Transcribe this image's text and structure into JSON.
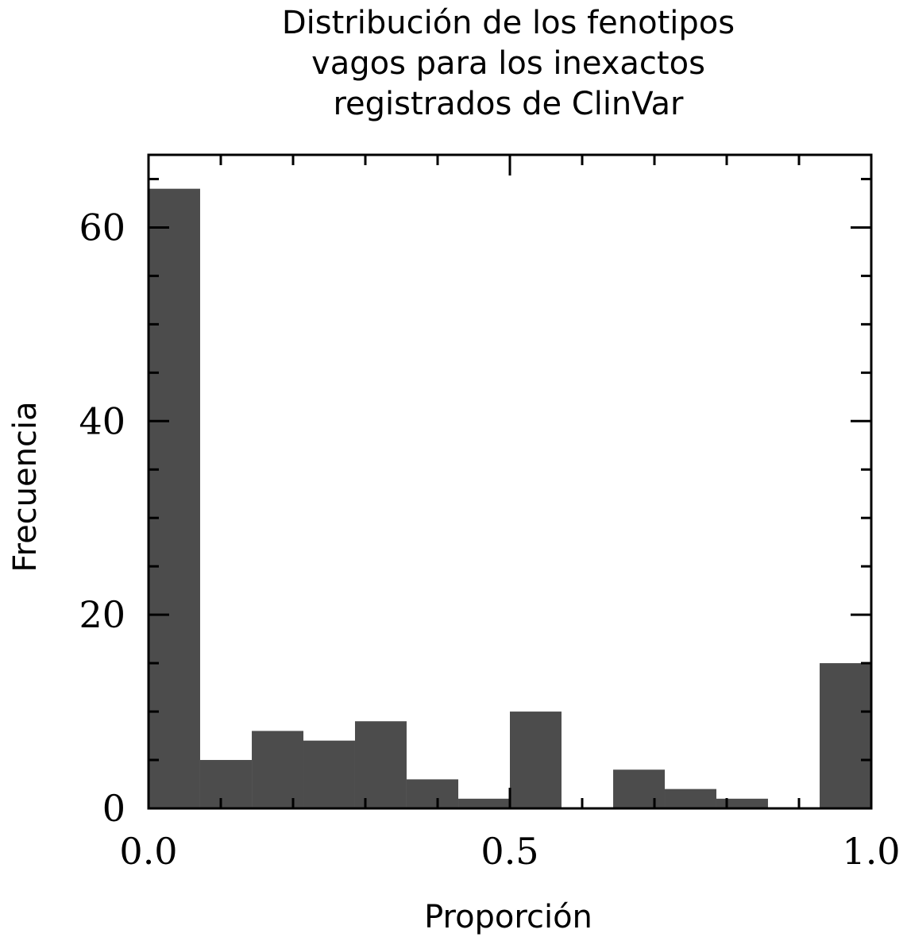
{
  "chart_data": {
    "type": "bar",
    "title_lines": [
      "Distribución de los fenotipos",
      "vagos para los inexactos",
      "registrados de ClinVar"
    ],
    "xlabel": "Proporción",
    "ylabel": "Frecuencia",
    "xlim": [
      0.0,
      1.0
    ],
    "ylim": [
      0,
      67.5
    ],
    "xticks": [
      0.0,
      0.5,
      1.0
    ],
    "xtick_labels": [
      "0.0",
      "0.5",
      "1.0"
    ],
    "xminor": [
      0.1,
      0.2,
      0.3,
      0.4,
      0.6,
      0.7,
      0.8,
      0.9
    ],
    "yticks": [
      0,
      20,
      40,
      60
    ],
    "ytick_labels": [
      "0",
      "20",
      "40",
      "60"
    ],
    "yminor": [
      5,
      10,
      15,
      25,
      30,
      35,
      45,
      50,
      55,
      65
    ],
    "bin_edges": [
      0.0,
      0.0714,
      0.1429,
      0.2143,
      0.2857,
      0.3571,
      0.4286,
      0.5,
      0.5714,
      0.6429,
      0.7143,
      0.7857,
      0.8571,
      0.9286,
      1.0
    ],
    "values": [
      64,
      5,
      8,
      7,
      9,
      3,
      1,
      10,
      0,
      4,
      2,
      1,
      0,
      15
    ],
    "bar_color": "#4c4c4c",
    "grid": false
  }
}
